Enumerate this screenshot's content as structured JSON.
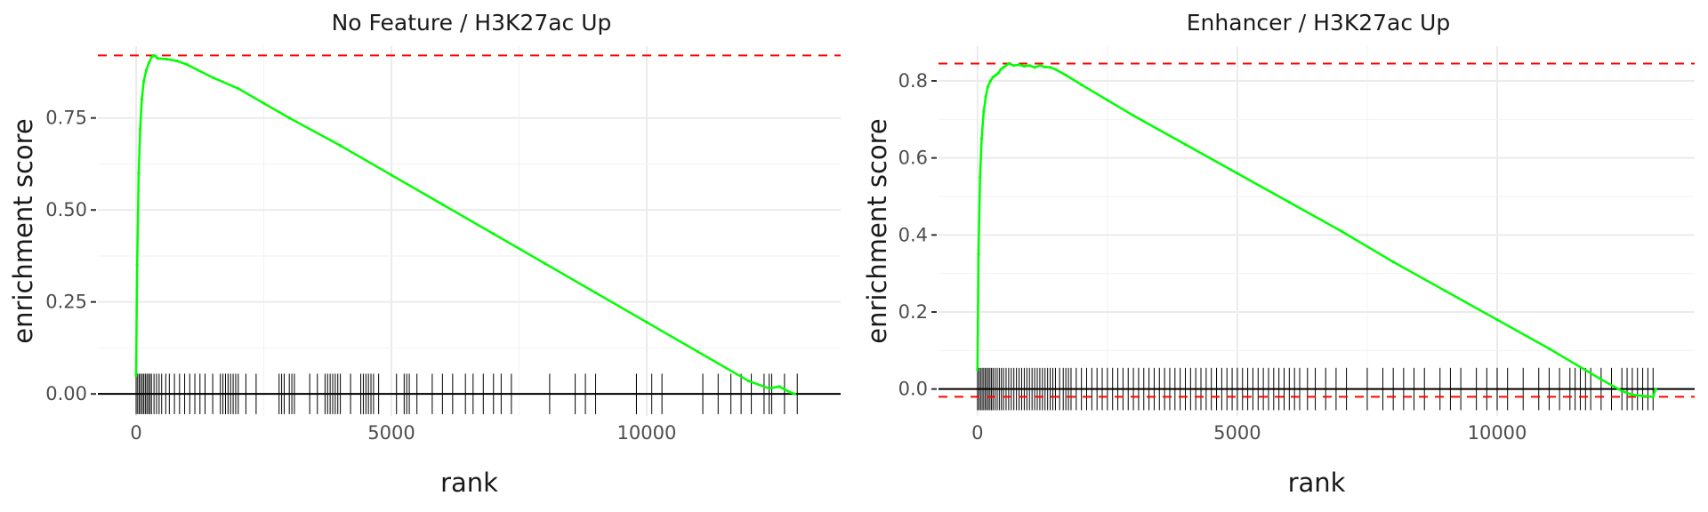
{
  "chart_data": [
    {
      "type": "line",
      "title": "No Feature / H3K27ac Up",
      "xlabel": "rank",
      "ylabel": "enrichment score",
      "xlim": [
        -750,
        13800
      ],
      "ylim": [
        -0.06,
        0.945
      ],
      "x_ticks": [
        0,
        5000,
        10000
      ],
      "x_tick_labels": [
        "0",
        "5000",
        "10000"
      ],
      "y_ticks": [
        0,
        0.25,
        0.5,
        0.75
      ],
      "y_tick_labels": [
        "0.00",
        "0.25",
        "0.50",
        "0.75"
      ],
      "grid": true,
      "line_color": "#00ff00",
      "ref_line_color": "#ff0000",
      "ref_lines": [
        0.92
      ],
      "zero_line": 0,
      "rug_color": "#000000",
      "rug_ylim": [
        -0.055,
        0.055
      ],
      "series": [
        {
          "x": [
            0,
            20,
            50,
            80,
            110,
            150,
            200,
            250,
            300,
            340,
            380,
            420,
            600,
            800,
            1000,
            1500,
            2000,
            2500,
            3000,
            4000,
            5000,
            6000,
            7000,
            8000,
            9000,
            10000,
            11000,
            12000,
            12400,
            12600,
            12800,
            12900
          ],
          "y": [
            0.05,
            0.35,
            0.6,
            0.72,
            0.8,
            0.85,
            0.88,
            0.9,
            0.915,
            0.92,
            0.918,
            0.912,
            0.91,
            0.905,
            0.895,
            0.86,
            0.83,
            0.79,
            0.75,
            0.675,
            0.595,
            0.515,
            0.435,
            0.355,
            0.275,
            0.195,
            0.115,
            0.035,
            0.015,
            0.02,
            0.005,
            0.0
          ]
        }
      ],
      "rug_positions": [
        0,
        30,
        60,
        90,
        120,
        150,
        180,
        210,
        240,
        270,
        300,
        350,
        400,
        450,
        500,
        580,
        650,
        750,
        850,
        950,
        1050,
        1150,
        1250,
        1350,
        1500,
        1650,
        1700,
        1750,
        1800,
        1850,
        1900,
        1950,
        2000,
        2150,
        2350,
        2800,
        2850,
        2900,
        3000,
        3050,
        3100,
        3400,
        3550,
        3700,
        3750,
        3800,
        3850,
        3900,
        3950,
        4000,
        4200,
        4400,
        4450,
        4500,
        4550,
        4600,
        4650,
        4750,
        5100,
        5250,
        5300,
        5350,
        5500,
        5800,
        6000,
        6200,
        6450,
        6600,
        6800,
        7000,
        7150,
        7350,
        8100,
        8600,
        8800,
        9000,
        9800,
        10100,
        10300,
        11100,
        11400,
        11650,
        11850,
        12050,
        12300,
        12400,
        12450,
        12700,
        12950
      ]
    },
    {
      "type": "line",
      "title": "Enhancer / H3K27ac Up",
      "xlabel": "rank",
      "ylabel": "enrichment score",
      "xlim": [
        -750,
        13800
      ],
      "ylim": [
        -0.07,
        0.89
      ],
      "x_ticks": [
        0,
        5000,
        10000
      ],
      "x_tick_labels": [
        "0",
        "5000",
        "10000"
      ],
      "y_ticks": [
        0,
        0.2,
        0.4,
        0.6,
        0.8
      ],
      "y_tick_labels": [
        "0.0",
        "0.2",
        "0.4",
        "0.6",
        "0.8"
      ],
      "grid": true,
      "line_color": "#00ff00",
      "ref_line_color": "#ff0000",
      "ref_lines": [
        0.845,
        -0.02
      ],
      "zero_line": 0,
      "rug_color": "#000000",
      "rug_ylim": [
        -0.055,
        0.055
      ],
      "series": [
        {
          "x": [
            0,
            20,
            50,
            80,
            120,
            160,
            200,
            250,
            300,
            350,
            400,
            450,
            500,
            550,
            600,
            700,
            800,
            900,
            1000,
            1100,
            1200,
            1300,
            1400,
            1500,
            1700,
            2000,
            2500,
            3000,
            4000,
            5000,
            6000,
            7000,
            8000,
            9000,
            10000,
            11000,
            12000,
            12400,
            12600,
            12800,
            13000,
            13050
          ],
          "y": [
            0.05,
            0.35,
            0.55,
            0.65,
            0.72,
            0.76,
            0.785,
            0.8,
            0.81,
            0.815,
            0.82,
            0.83,
            0.835,
            0.84,
            0.845,
            0.84,
            0.842,
            0.838,
            0.84,
            0.835,
            0.84,
            0.836,
            0.835,
            0.83,
            0.815,
            0.79,
            0.75,
            0.71,
            0.635,
            0.56,
            0.485,
            0.41,
            0.33,
            0.255,
            0.18,
            0.105,
            0.025,
            -0.005,
            -0.015,
            -0.018,
            -0.02,
            0.0
          ]
        }
      ],
      "rug_positions": [
        0,
        30,
        60,
        90,
        120,
        150,
        180,
        210,
        240,
        270,
        300,
        340,
        380,
        420,
        460,
        500,
        550,
        600,
        650,
        700,
        750,
        800,
        850,
        900,
        950,
        1000,
        1050,
        1100,
        1150,
        1200,
        1250,
        1300,
        1350,
        1400,
        1450,
        1500,
        1580,
        1650,
        1700,
        1750,
        1800,
        1900,
        2000,
        2100,
        2200,
        2300,
        2400,
        2500,
        2600,
        2700,
        2800,
        2900,
        3000,
        3100,
        3200,
        3300,
        3400,
        3500,
        3600,
        3700,
        3800,
        3900,
        4000,
        4100,
        4200,
        4300,
        4400,
        4500,
        4600,
        4700,
        4800,
        4900,
        5000,
        5100,
        5200,
        5300,
        5400,
        5500,
        5600,
        5700,
        5800,
        5900,
        6000,
        6100,
        6200,
        6350,
        6500,
        6700,
        6900,
        7100,
        7500,
        7800,
        8000,
        8200,
        8400,
        8600,
        8900,
        9100,
        9300,
        9600,
        9800,
        10000,
        10200,
        10500,
        10800,
        11000,
        11200,
        11400,
        11500,
        11600,
        11700,
        11800,
        12000,
        12200,
        12400,
        12500,
        12600,
        12700,
        12800,
        12900,
        13000
      ]
    }
  ]
}
